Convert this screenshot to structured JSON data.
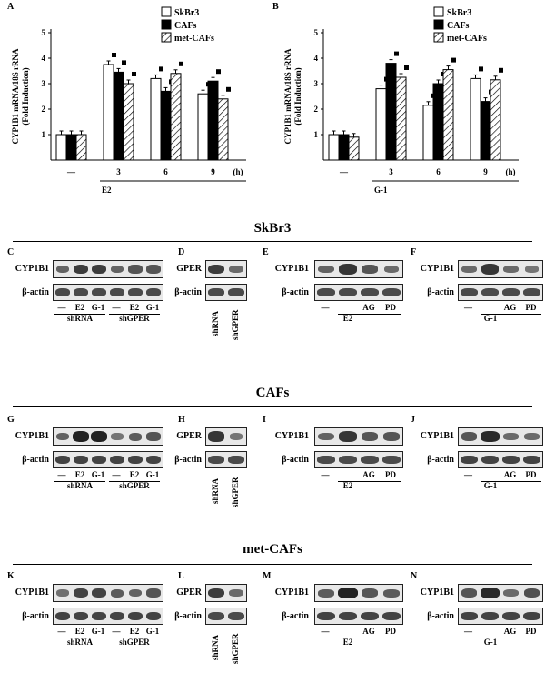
{
  "panels": {
    "A": "A",
    "B": "B",
    "C": "C",
    "D": "D",
    "E": "E",
    "F": "F",
    "G": "G",
    "H": "H",
    "I": "I",
    "J": "J",
    "K": "K",
    "L": "L",
    "M": "M",
    "N": "N"
  },
  "sections": [
    "SkBr3",
    "CAFs",
    "met-CAFs"
  ],
  "row_labels": {
    "cyp": "CYP1B1",
    "actin": "β-actin",
    "gper": "GPER"
  },
  "lane_labels": {
    "dash": "—",
    "e2": "E2",
    "g1": "G-1",
    "ag": "AG",
    "pd": "PD",
    "shrna": "shRNA",
    "shgper": "shGPER"
  },
  "chart_data": [
    {
      "type": "bar",
      "panel": "A",
      "ylabel_line1": "CYP1B1 mRNA/18S rRNA",
      "ylabel_line2": "(Fold Induction)",
      "ylim": [
        0,
        5
      ],
      "yticks": [
        "1",
        "2",
        "3",
        "4",
        "5"
      ],
      "categories": [
        "—",
        "3",
        "6",
        "9"
      ],
      "unit": "(h)",
      "treatment": "E2",
      "legend": [
        "SkBr3",
        "CAFs",
        "met-CAFs"
      ],
      "series": [
        {
          "name": "SkBr3",
          "values": [
            1.0,
            3.75,
            3.2,
            2.6
          ]
        },
        {
          "name": "CAFs",
          "values": [
            1.0,
            3.45,
            2.7,
            3.1
          ]
        },
        {
          "name": "met-CAFs",
          "values": [
            1.0,
            3.0,
            3.4,
            2.4
          ]
        }
      ]
    },
    {
      "type": "bar",
      "panel": "B",
      "ylabel_line1": "CYP1B1 mRNA/18S rRNA",
      "ylabel_line2": "(Fold Induction)",
      "ylim": [
        0,
        5
      ],
      "yticks": [
        "1",
        "2",
        "3",
        "4",
        "5"
      ],
      "categories": [
        "—",
        "3",
        "6",
        "9"
      ],
      "unit": "(h)",
      "treatment": "G-1",
      "legend": [
        "SkBr3",
        "CAFs",
        "met-CAFs"
      ],
      "series": [
        {
          "name": "SkBr3",
          "values": [
            1.0,
            2.8,
            2.15,
            3.2
          ]
        },
        {
          "name": "CAFs",
          "values": [
            1.0,
            3.8,
            3.0,
            2.3
          ]
        },
        {
          "name": "met-CAFs",
          "values": [
            0.9,
            3.25,
            3.55,
            3.15
          ]
        }
      ]
    }
  ]
}
